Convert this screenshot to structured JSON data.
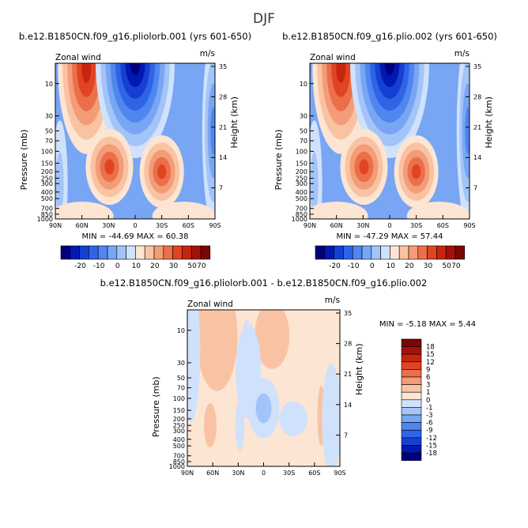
{
  "page_title": "DJF",
  "chart_data": [
    {
      "type": "heatmap",
      "title": "b.e12.B1850CN.f09_g16.pliolorb.001 (yrs 601-650)",
      "left_label": "Zonal wind",
      "right_label": "m/s",
      "xlabel": "",
      "ylabel": "Pressure (mb)",
      "y2label": "Height (km)",
      "x_ticks": [
        "90N",
        "60N",
        "30N",
        "0",
        "30S",
        "60S",
        "90S"
      ],
      "y_ticks": [
        "10",
        "30",
        "50",
        "70",
        "100",
        "150",
        "200",
        "250",
        "300",
        "400",
        "500",
        "700",
        "850",
        "1000"
      ],
      "y2_ticks": [
        "35",
        "28",
        "21",
        "14",
        "7"
      ],
      "xlim": [
        "90N",
        "90S"
      ],
      "ylim": [
        1000,
        5
      ],
      "y_scale": "log",
      "min_label": "MIN = -44.69",
      "max_label": "MAX = 60.38",
      "colorbar": {
        "orientation": "horizontal",
        "tick_labels": [
          "-20",
          "-10",
          "0",
          "10",
          "20",
          "30",
          "50",
          "70"
        ],
        "levels": [
          -40,
          -30,
          -20,
          -15,
          -10,
          -5,
          0,
          5,
          10,
          15,
          20,
          25,
          30,
          40,
          50,
          60,
          70
        ]
      },
      "features": [
        {
          "kind": "westerly jet max",
          "lat": 55,
          "p": 6,
          "value": 60
        },
        {
          "kind": "subtropical jet",
          "lat": 29,
          "p": 170,
          "value": 26
        },
        {
          "kind": "subtropical jet",
          "lat": -30,
          "p": 200,
          "value": 24
        },
        {
          "kind": "easterly min",
          "lat": 0,
          "p": 5,
          "value": -44
        }
      ]
    },
    {
      "type": "heatmap",
      "title": "b.e12.B1850CN.f09_g16.plio.002 (yrs 601-650)",
      "left_label": "Zonal wind",
      "right_label": "m/s",
      "xlabel": "",
      "ylabel": "Pressure (mb)",
      "y2label": "Height (km)",
      "x_ticks": [
        "90N",
        "60N",
        "30N",
        "0",
        "30S",
        "60S",
        "90S"
      ],
      "y_ticks": [
        "10",
        "30",
        "50",
        "70",
        "100",
        "150",
        "200",
        "250",
        "300",
        "400",
        "500",
        "700",
        "850",
        "1000"
      ],
      "y2_ticks": [
        "35",
        "28",
        "21",
        "14",
        "7"
      ],
      "xlim": [
        "90N",
        "90S"
      ],
      "ylim": [
        1000,
        5
      ],
      "y_scale": "log",
      "min_label": "MIN = -47.29",
      "max_label": "MAX = 57.44",
      "colorbar": {
        "orientation": "horizontal",
        "tick_labels": [
          "-20",
          "-10",
          "0",
          "10",
          "20",
          "30",
          "50",
          "70"
        ],
        "levels": [
          -40,
          -30,
          -20,
          -15,
          -10,
          -5,
          0,
          5,
          10,
          15,
          20,
          25,
          30,
          40,
          50,
          60,
          70
        ]
      },
      "features": [
        {
          "kind": "westerly jet max",
          "lat": 55,
          "p": 6,
          "value": 57
        },
        {
          "kind": "subtropical jet",
          "lat": 29,
          "p": 170,
          "value": 26
        },
        {
          "kind": "subtropical jet",
          "lat": -30,
          "p": 200,
          "value": 24
        },
        {
          "kind": "easterly min",
          "lat": 0,
          "p": 5,
          "value": -47
        }
      ]
    },
    {
      "type": "heatmap",
      "title": "b.e12.B1850CN.f09_g16.pliolorb.001 - b.e12.B1850CN.f09_g16.plio.002",
      "left_label": "Zonal wind",
      "right_label": "m/s",
      "xlabel": "",
      "ylabel": "Pressure (mb)",
      "y2label": "Height (km)",
      "x_ticks": [
        "90N",
        "60N",
        "30N",
        "0",
        "30S",
        "60S",
        "90S"
      ],
      "y_ticks": [
        "10",
        "30",
        "50",
        "70",
        "100",
        "150",
        "200",
        "250",
        "300",
        "400",
        "500",
        "700",
        "850",
        "1000"
      ],
      "y2_ticks": [
        "35",
        "28",
        "21",
        "14",
        "7"
      ],
      "xlim": [
        "90N",
        "90S"
      ],
      "ylim": [
        1000,
        5
      ],
      "y_scale": "log",
      "min_label": "MIN = -5.18",
      "max_label": "MAX = 5.44",
      "colorbar": {
        "orientation": "vertical",
        "tick_labels": [
          "18",
          "15",
          "12",
          "9",
          "6",
          "3",
          "1",
          "0",
          "-1",
          "-3",
          "-6",
          "-9",
          "-12",
          "-15",
          "-18"
        ],
        "levels": [
          -18,
          -15,
          -12,
          -9,
          -6,
          -3,
          -1,
          0,
          1,
          3,
          6,
          9,
          12,
          15,
          18
        ]
      },
      "features": [
        {
          "kind": "positive",
          "lat": 55,
          "p": 12,
          "value": 3
        },
        {
          "kind": "negative",
          "lat": 20,
          "p": 20,
          "value": -1
        },
        {
          "kind": "positive",
          "lat": -10,
          "p": 12,
          "value": 3
        },
        {
          "kind": "negative",
          "lat": 0,
          "p": 140,
          "value": -4
        },
        {
          "kind": "positive",
          "lat": 63,
          "p": 250,
          "value": 2
        },
        {
          "kind": "negative",
          "lat": 28,
          "p": 250,
          "value": -1
        }
      ]
    }
  ]
}
